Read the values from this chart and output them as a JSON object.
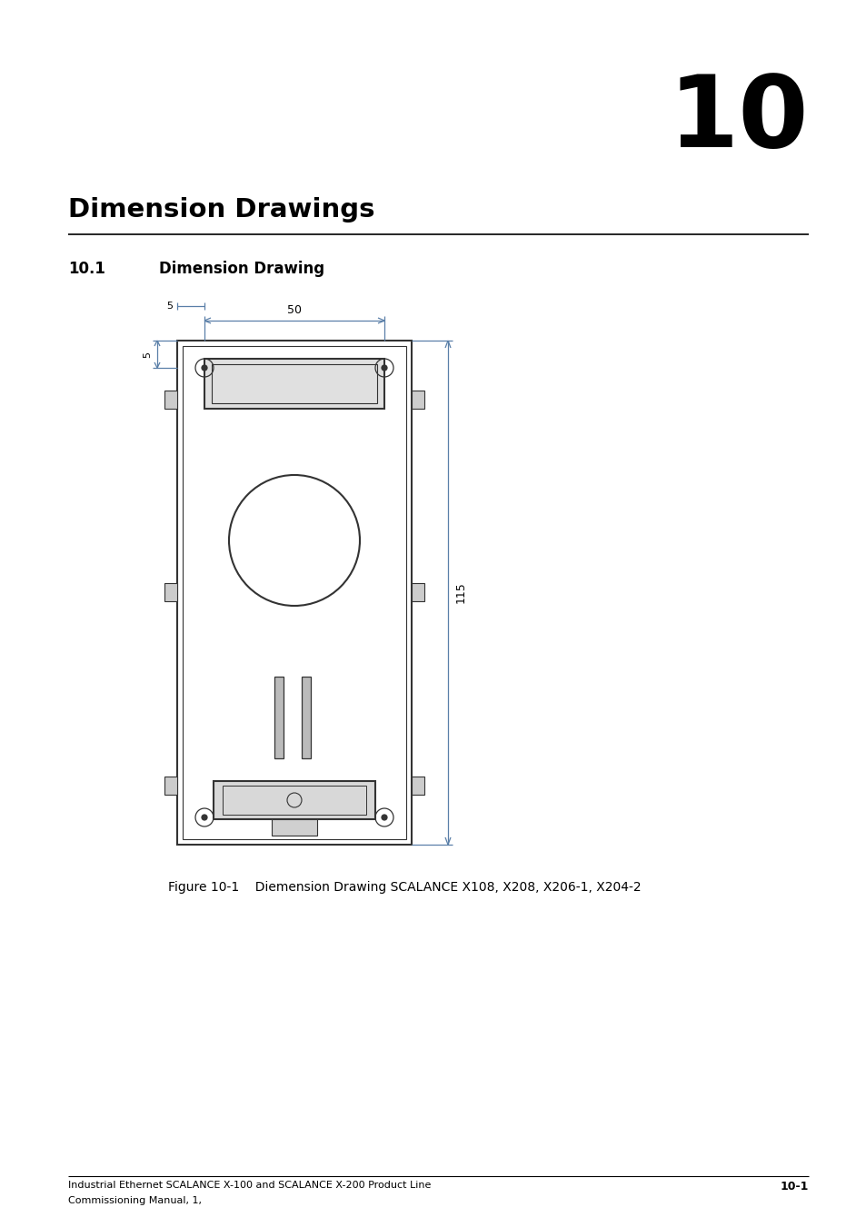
{
  "title": "Dimension Drawings",
  "chapter_num": "10",
  "section": "10.1",
  "section_title": "Dimension Drawing",
  "figure_caption": "Figure 10-1    Diemension Drawing SCALANCE X108, X208, X206-1, X204-2",
  "footer_left_line1": "Industrial Ethernet SCALANCE X-100 and SCALANCE X-200 Product Line",
  "footer_left_line2": "Commissioning Manual, 1,",
  "footer_right": "10-1",
  "bg_color": "#ffffff",
  "body_color": "#333333",
  "dim_color": "#5a7fa8",
  "drawing": {
    "dim_50_label": "50",
    "dim_5_top_label": "5",
    "dim_5_left_label": "5",
    "dim_115_label": "115"
  }
}
